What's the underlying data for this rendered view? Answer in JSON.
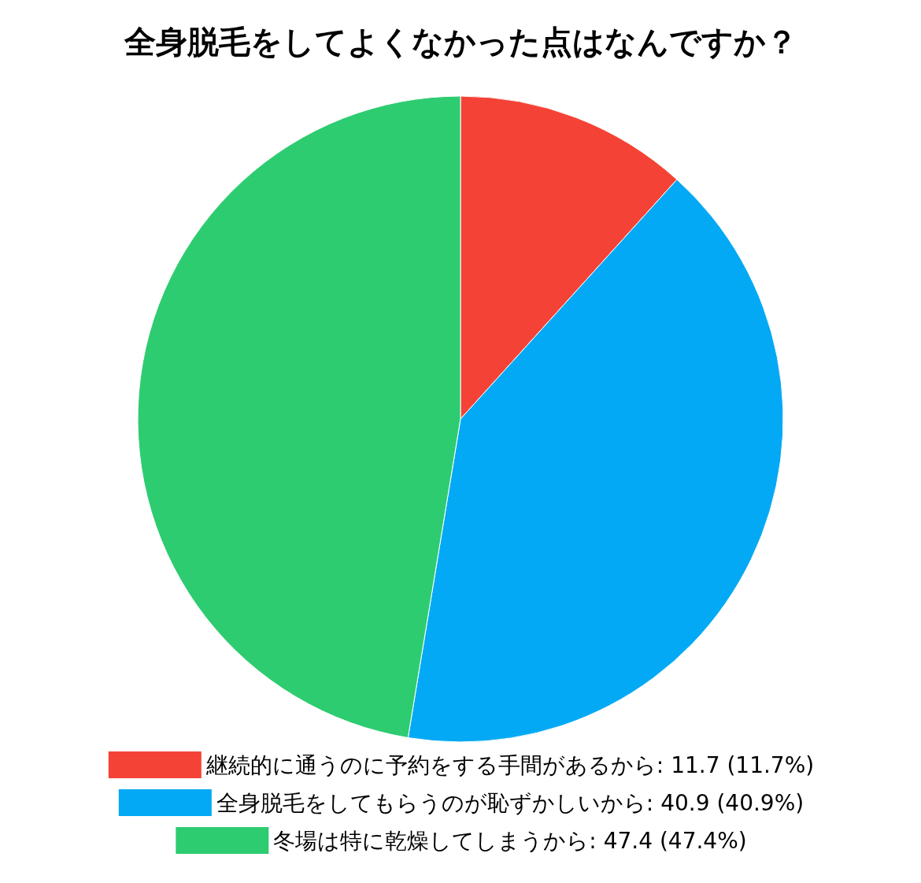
{
  "chart_data": {
    "type": "pie",
    "title": "全身脱毛をしてよくなかった点はなんですか？",
    "categories": [
      "継続的に通うのに予約をする手間があるから",
      "全身脱毛をしてもらうのが恥ずかしいから",
      "冬場は特に乾燥してしまうから"
    ],
    "values": [
      11.7,
      40.9,
      47.4
    ],
    "value_labels": [
      "11.7 (11.7%)",
      "40.9 (40.9%)",
      "47.4 (47.4%)"
    ],
    "colors": [
      "#f44336",
      "#03a9f4",
      "#2ecc71"
    ],
    "legend": "bottom"
  }
}
